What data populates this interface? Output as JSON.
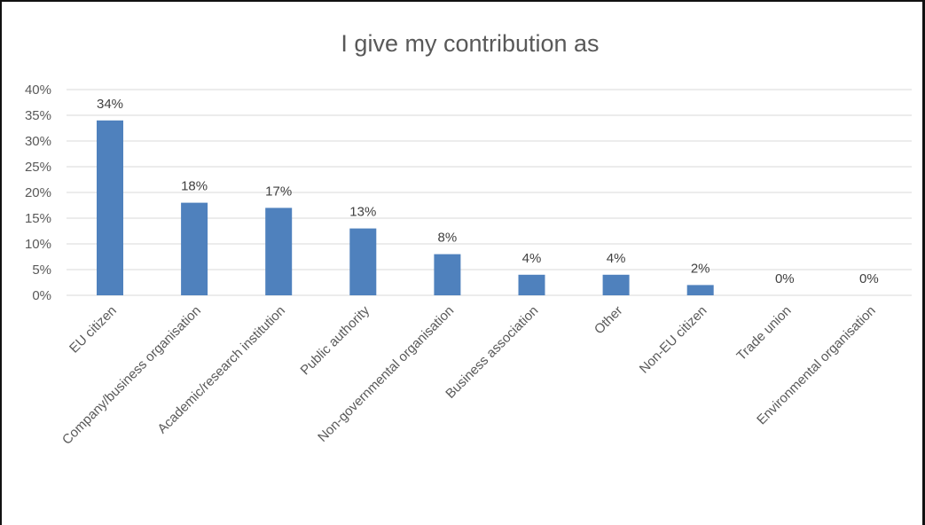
{
  "chart_data": {
    "type": "bar",
    "title": "I give my contribution as",
    "xlabel": "",
    "ylabel": "",
    "categories": [
      "EU citizen",
      "Company/business organisation",
      "Academic/research institution",
      "Public authority",
      "Non-governmental organisation",
      "Business association",
      "Other",
      "Non-EU citizen",
      "Trade union",
      "Environmental organisation"
    ],
    "values": [
      34,
      18,
      17,
      13,
      8,
      4,
      4,
      2,
      0,
      0
    ],
    "data_labels": [
      "34%",
      "18%",
      "17%",
      "13%",
      "8%",
      "4%",
      "4%",
      "2%",
      "0%",
      "0%"
    ],
    "y_ticks": [
      "0%",
      "5%",
      "10%",
      "15%",
      "20%",
      "25%",
      "30%",
      "35%",
      "40%"
    ],
    "y_tick_values": [
      0,
      5,
      10,
      15,
      20,
      25,
      30,
      35,
      40
    ],
    "ylim": [
      0,
      40
    ],
    "grid": true,
    "legend": "none",
    "colors": {
      "bar": "#4f81bd",
      "grid": "#d9d9d9",
      "text": "#595959"
    }
  }
}
